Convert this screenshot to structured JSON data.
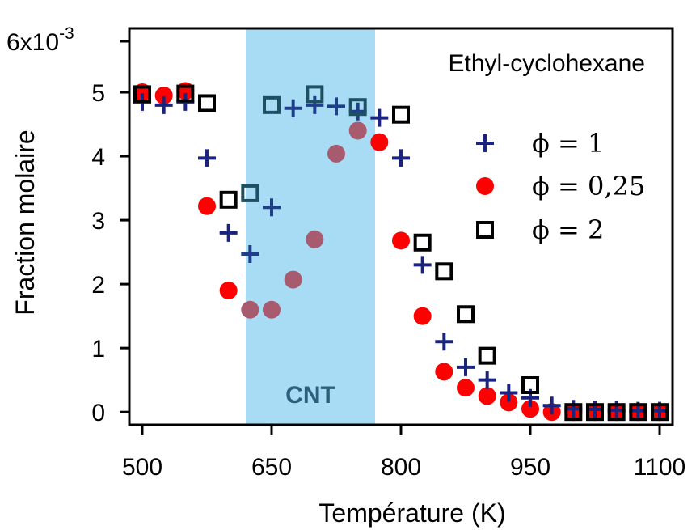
{
  "chart_data": {
    "type": "scatter",
    "xlabel": "Température (K)",
    "ylabel": "Fraction molaire",
    "y_scale_label": "6x10",
    "y_scale_exponent": "-3",
    "annotation": "Ethyl-cyclohexane",
    "band": {
      "label": "CNT",
      "x_start": 620,
      "x_end": 770,
      "color": "#a8dcf5"
    },
    "xlim": [
      485,
      1115
    ],
    "ylim": [
      -0.2,
      6
    ],
    "x_ticks": [
      500,
      650,
      800,
      950,
      1100
    ],
    "x_tick_labels": [
      "500",
      "650",
      "800",
      "950",
      "1100"
    ],
    "y_ticks": [
      0,
      1,
      2,
      3,
      4,
      5
    ],
    "y_tick_labels": [
      "0",
      "1",
      "2",
      "3",
      "4",
      "5"
    ],
    "grid": false,
    "legend_position": "top-right",
    "series": [
      {
        "name": "ϕ = 1",
        "marker": "plus",
        "color": "#1a237e",
        "points": [
          [
            500,
            4.85
          ],
          [
            525,
            4.8
          ],
          [
            550,
            4.85
          ],
          [
            575,
            3.97
          ],
          [
            600,
            2.8
          ],
          [
            625,
            2.47
          ],
          [
            650,
            3.2
          ],
          [
            675,
            4.75
          ],
          [
            700,
            4.8
          ],
          [
            725,
            4.78
          ],
          [
            750,
            4.7
          ],
          [
            775,
            4.6
          ],
          [
            800,
            3.97
          ],
          [
            825,
            2.3
          ],
          [
            850,
            1.1
          ],
          [
            875,
            0.7
          ],
          [
            900,
            0.5
          ],
          [
            925,
            0.3
          ],
          [
            950,
            0.22
          ],
          [
            975,
            0.1
          ],
          [
            1000,
            0.05
          ],
          [
            1025,
            0.04
          ],
          [
            1050,
            0.03
          ],
          [
            1075,
            0.02
          ],
          [
            1100,
            0.02
          ]
        ]
      },
      {
        "name": "ϕ = 0,25",
        "marker": "circle",
        "color": "#ff0000",
        "points": [
          [
            500,
            5.0
          ],
          [
            525,
            4.95
          ],
          [
            550,
            5.02
          ],
          [
            575,
            3.22
          ],
          [
            600,
            1.9
          ],
          [
            625,
            1.6
          ],
          [
            650,
            1.6
          ],
          [
            675,
            2.07
          ],
          [
            700,
            2.7
          ],
          [
            725,
            4.04
          ],
          [
            750,
            4.4
          ],
          [
            775,
            4.22
          ],
          [
            800,
            2.68
          ],
          [
            825,
            1.5
          ],
          [
            850,
            0.63
          ],
          [
            875,
            0.38
          ],
          [
            900,
            0.25
          ],
          [
            925,
            0.15
          ],
          [
            950,
            0.05
          ],
          [
            975,
            0.0
          ],
          [
            1000,
            0.0
          ],
          [
            1025,
            0.0
          ],
          [
            1050,
            0.0
          ],
          [
            1075,
            0.0
          ],
          [
            1100,
            0.0
          ]
        ]
      },
      {
        "name": "ϕ = 2",
        "marker": "square",
        "color": "#000000",
        "points": [
          [
            500,
            4.97
          ],
          [
            550,
            4.98
          ],
          [
            575,
            4.83
          ],
          [
            600,
            3.32
          ],
          [
            625,
            3.42
          ],
          [
            650,
            4.8
          ],
          [
            700,
            4.97
          ],
          [
            750,
            4.77
          ],
          [
            800,
            4.65
          ],
          [
            825,
            2.65
          ],
          [
            850,
            2.2
          ],
          [
            875,
            1.53
          ],
          [
            900,
            0.88
          ],
          [
            950,
            0.42
          ],
          [
            1000,
            0.0
          ],
          [
            1025,
            0.0
          ],
          [
            1050,
            0.0
          ],
          [
            1075,
            0.0
          ],
          [
            1100,
            0.0
          ]
        ]
      }
    ]
  }
}
